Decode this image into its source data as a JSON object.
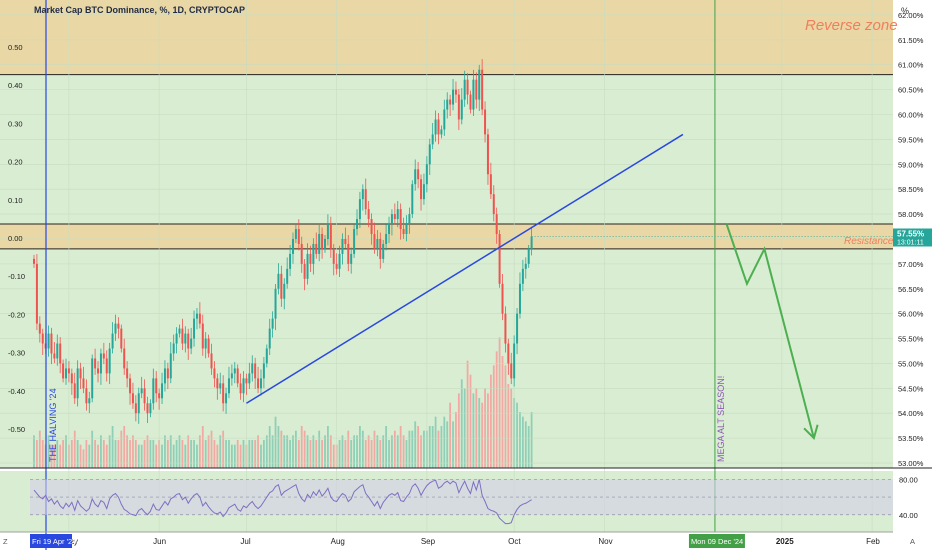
{
  "chart_data": {
    "type": "candlestick",
    "title": "Market Cap BTC Dominance, %, 1D, CRYPTOCAP",
    "unit_label": "%",
    "left_axis": {
      "ticks": [
        "0.50",
        "0.40",
        "0.30",
        "0.20",
        "0.10",
        "0.00",
        "-0.10",
        "-0.20",
        "-0.30",
        "-0.40",
        "-0.50"
      ]
    },
    "right_axis": {
      "ylim": [
        52.9,
        62.3
      ],
      "ticks": [
        "62.00%",
        "61.50%",
        "61.00%",
        "60.50%",
        "60.00%",
        "59.50%",
        "59.00%",
        "58.50%",
        "58.00%",
        "57.50%",
        "57.00%",
        "56.50%",
        "56.00%",
        "55.50%",
        "55.00%",
        "54.50%",
        "54.00%",
        "53.50%",
        "53.00%"
      ],
      "last_price": "57.55%",
      "countdown": "13:01:11"
    },
    "x_axis": {
      "ticks": [
        "May",
        "Jun",
        "Jul",
        "Aug",
        "Sep",
        "Oct",
        "Nov",
        "2025",
        "Feb"
      ],
      "highlight_left": "Fri 19 Apr '24",
      "highlight_right": "Mon 09 Dec '24"
    },
    "zones": [
      {
        "label": "Reverse zone",
        "from": 60.8,
        "to": 62.3,
        "color": "#e9d8a6"
      },
      {
        "label": "Resistance",
        "from": 57.3,
        "to": 57.8,
        "color": "#e9d8a6"
      }
    ],
    "vertical_markers": [
      {
        "label": "THE HALVING '24",
        "color": "#2848e0"
      },
      {
        "label": "MEGA ALT SEASON!",
        "color": "#43a047"
      }
    ],
    "candles": {
      "start": "2024-04-19",
      "values": [
        57.0,
        55.8,
        55.6,
        55.4,
        55.3,
        55.6,
        55.2,
        55.1,
        55.4,
        55.0,
        54.7,
        54.9,
        54.8,
        54.6,
        54.3,
        54.9,
        54.7,
        54.5,
        54.2,
        54.3,
        55.1,
        54.9,
        54.8,
        55.2,
        55.1,
        54.8,
        55.3,
        55.6,
        55.8,
        55.7,
        55.3,
        54.9,
        54.7,
        54.4,
        54.2,
        54.0,
        54.4,
        54.5,
        54.2,
        54.0,
        54.2,
        54.7,
        54.4,
        54.3,
        54.6,
        54.9,
        54.7,
        55.2,
        55.4,
        55.6,
        55.7,
        55.4,
        55.6,
        55.3,
        55.5,
        55.9,
        56.0,
        55.8,
        55.3,
        55.5,
        55.2,
        54.9,
        54.7,
        54.5,
        54.6,
        54.2,
        54.4,
        54.7,
        54.8,
        54.9,
        54.6,
        54.4,
        54.7,
        54.6,
        54.8,
        55.0,
        54.7,
        54.5,
        54.7,
        55.0,
        55.3,
        55.7,
        55.9,
        56.5,
        56.8,
        56.3,
        56.6,
        56.9,
        57.2,
        57.5,
        57.7,
        57.4,
        57.0,
        56.7,
        57.2,
        57.0,
        57.4,
        57.2,
        57.6,
        57.3,
        57.5,
        57.8,
        57.3,
        57.0,
        56.9,
        57.2,
        57.5,
        57.4,
        57.0,
        57.2,
        57.7,
        57.9,
        58.3,
        58.5,
        58.1,
        57.9,
        57.6,
        57.3,
        57.5,
        57.1,
        57.4,
        57.6,
        57.8,
        58.0,
        57.9,
        58.1,
        57.7,
        57.6,
        57.8,
        58.0,
        58.6,
        58.9,
        58.7,
        58.3,
        58.6,
        59.0,
        59.4,
        59.6,
        59.9,
        59.6,
        59.7,
        60.1,
        60.3,
        60.2,
        60.5,
        60.4,
        59.9,
        60.3,
        60.7,
        60.4,
        60.1,
        60.7,
        60.3,
        60.9,
        60.1,
        59.6,
        58.8,
        58.4,
        58.0,
        57.6,
        56.6,
        56.0,
        55.4,
        55.0,
        54.7,
        55.4,
        56.0,
        56.6,
        56.9,
        57.0,
        57.3,
        57.55
      ]
    },
    "projection": {
      "label": "projected path",
      "points": [
        [
          "2024-12-13",
          57.8
        ],
        [
          "2024-12-20",
          56.6
        ],
        [
          "2024-12-26",
          57.3
        ],
        [
          "2025-01-12",
          53.5
        ]
      ]
    },
    "volume": {
      "bars": [
        7,
        6,
        8,
        6,
        5,
        7,
        5,
        5,
        6,
        5,
        6,
        7,
        5,
        6,
        8,
        6,
        5,
        4,
        6,
        5,
        8,
        6,
        5,
        7,
        6,
        5,
        7,
        9,
        6,
        6,
        8,
        9,
        7,
        6,
        7,
        6,
        5,
        5,
        6,
        7,
        6,
        6,
        5,
        6,
        5,
        7,
        6,
        7,
        5,
        6,
        7,
        6,
        5,
        7,
        6,
        6,
        5,
        7,
        9,
        6,
        7,
        8,
        6,
        5,
        7,
        8,
        6,
        6,
        5,
        5,
        6,
        5,
        6,
        5,
        6,
        6,
        6,
        7,
        5,
        6,
        7,
        9,
        7,
        11,
        9,
        8,
        7,
        7,
        6,
        7,
        8,
        6,
        9,
        8,
        7,
        6,
        7,
        6,
        8,
        6,
        7,
        9,
        7,
        5,
        5,
        6,
        7,
        6,
        8,
        6,
        7,
        7,
        9,
        8,
        6,
        7,
        6,
        8,
        7,
        6,
        7,
        9,
        6,
        7,
        8,
        7,
        9,
        7,
        6,
        8,
        8,
        10,
        9,
        7,
        8,
        8,
        9,
        9,
        11,
        8,
        9,
        11,
        10,
        14,
        10,
        12,
        16,
        19,
        17,
        23,
        20,
        16,
        17,
        15,
        14,
        17,
        16,
        20,
        22,
        25,
        28,
        24,
        22,
        18,
        17,
        15,
        14,
        12,
        11,
        10,
        9,
        12
      ]
    },
    "rsi": {
      "levels": [
        "80.00",
        "40.00"
      ],
      "values": [
        68,
        64,
        60,
        58,
        62,
        55,
        58,
        52,
        56,
        50,
        47,
        53,
        49,
        54,
        45,
        56,
        50,
        47,
        44,
        47,
        58,
        52,
        49,
        56,
        54,
        47,
        58,
        62,
        64,
        60,
        52,
        46,
        44,
        41,
        40,
        39,
        45,
        47,
        43,
        40,
        44,
        52,
        46,
        45,
        50,
        55,
        51,
        58,
        60,
        63,
        64,
        57,
        60,
        53,
        58,
        62,
        64,
        60,
        50,
        54,
        49,
        45,
        42,
        41,
        43,
        38,
        42,
        48,
        50,
        52,
        46,
        44,
        50,
        48,
        52,
        55,
        50,
        47,
        50,
        55,
        60,
        65,
        67,
        72,
        74,
        62,
        66,
        68,
        70,
        72,
        74,
        64,
        58,
        55,
        63,
        59,
        66,
        62,
        68,
        61,
        65,
        70,
        60,
        56,
        55,
        60,
        64,
        62,
        55,
        58,
        66,
        69,
        72,
        74,
        64,
        60,
        55,
        50,
        55,
        47,
        54,
        58,
        62,
        64,
        62,
        65,
        56,
        55,
        60,
        64,
        72,
        75,
        70,
        62,
        68,
        73,
        76,
        78,
        79,
        70,
        72,
        76,
        78,
        75,
        78,
        76,
        65,
        72,
        78,
        70,
        64,
        77,
        68,
        80,
        62,
        55,
        47,
        45,
        44,
        42,
        36,
        33,
        30,
        30,
        31,
        40,
        46,
        50,
        52,
        53,
        55,
        57
      ]
    }
  }
}
